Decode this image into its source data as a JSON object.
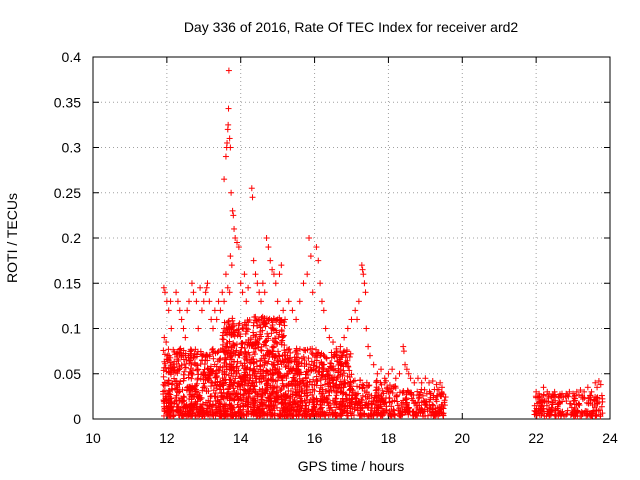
{
  "chart_data": {
    "type": "scatter",
    "title": "Day 336 of 2016, Rate Of TEC Index for receiver ard2",
    "xlabel": "GPS time / hours",
    "ylabel": "ROTI / TECUs",
    "xlim": [
      10,
      24
    ],
    "ylim": [
      0,
      0.4
    ],
    "x_ticks": [
      10,
      12,
      14,
      16,
      18,
      20,
      22,
      24
    ],
    "x_tick_labels": [
      "10",
      "12",
      "14",
      "16",
      "18",
      "20",
      "22",
      "24"
    ],
    "y_ticks": [
      0,
      0.05,
      0.1,
      0.15,
      0.2,
      0.25,
      0.3,
      0.35,
      0.4
    ],
    "y_tick_labels": [
      "0",
      "0.05",
      "0.1",
      "0.15",
      "0.2",
      "0.25",
      "0.3",
      "0.35",
      "0.4"
    ],
    "grid": true,
    "marker": "+",
    "marker_color": "#ff0000",
    "points": [
      [
        11.92,
        0.145
      ],
      [
        11.95,
        0.14
      ],
      [
        12.0,
        0.13
      ],
      [
        12.05,
        0.12
      ],
      [
        12.1,
        0.13
      ],
      [
        12.12,
        0.1
      ],
      [
        11.93,
        0.09
      ],
      [
        11.98,
        0.085
      ],
      [
        12.25,
        0.14
      ],
      [
        12.3,
        0.13
      ],
      [
        12.35,
        0.12
      ],
      [
        12.4,
        0.11
      ],
      [
        12.45,
        0.1
      ],
      [
        12.5,
        0.09
      ],
      [
        12.55,
        0.12
      ],
      [
        12.6,
        0.13
      ],
      [
        12.68,
        0.15
      ],
      [
        12.72,
        0.14
      ],
      [
        12.8,
        0.13
      ],
      [
        12.85,
        0.1
      ],
      [
        12.9,
        0.145
      ],
      [
        12.95,
        0.12
      ],
      [
        13.0,
        0.13
      ],
      [
        13.05,
        0.14
      ],
      [
        13.08,
        0.145
      ],
      [
        13.1,
        0.15
      ],
      [
        13.15,
        0.13
      ],
      [
        13.2,
        0.11
      ],
      [
        13.25,
        0.1
      ],
      [
        13.3,
        0.12
      ],
      [
        13.35,
        0.11
      ],
      [
        13.4,
        0.13
      ],
      [
        13.45,
        0.12
      ],
      [
        13.5,
        0.14
      ],
      [
        13.55,
        0.13
      ],
      [
        13.55,
        0.265
      ],
      [
        13.6,
        0.29
      ],
      [
        13.62,
        0.3
      ],
      [
        13.63,
        0.305
      ],
      [
        13.65,
        0.32
      ],
      [
        13.66,
        0.325
      ],
      [
        13.67,
        0.343
      ],
      [
        13.68,
        0.385
      ],
      [
        13.7,
        0.31
      ],
      [
        13.72,
        0.3
      ],
      [
        13.74,
        0.25
      ],
      [
        13.78,
        0.23
      ],
      [
        13.8,
        0.225
      ],
      [
        13.82,
        0.21
      ],
      [
        13.85,
        0.2
      ],
      [
        13.9,
        0.195
      ],
      [
        13.95,
        0.19
      ],
      [
        13.72,
        0.18
      ],
      [
        13.76,
        0.17
      ],
      [
        13.6,
        0.16
      ],
      [
        13.65,
        0.145
      ],
      [
        13.7,
        0.14
      ],
      [
        14.0,
        0.15
      ],
      [
        14.05,
        0.14
      ],
      [
        14.1,
        0.16
      ],
      [
        14.15,
        0.13
      ],
      [
        14.2,
        0.145
      ],
      [
        14.3,
        0.255
      ],
      [
        14.32,
        0.245
      ],
      [
        14.35,
        0.175
      ],
      [
        14.4,
        0.16
      ],
      [
        14.45,
        0.15
      ],
      [
        14.5,
        0.14
      ],
      [
        14.55,
        0.13
      ],
      [
        14.6,
        0.15
      ],
      [
        14.65,
        0.14
      ],
      [
        14.7,
        0.2
      ],
      [
        14.75,
        0.19
      ],
      [
        14.8,
        0.175
      ],
      [
        14.85,
        0.165
      ],
      [
        14.9,
        0.16
      ],
      [
        14.95,
        0.15
      ],
      [
        15.0,
        0.13
      ],
      [
        15.05,
        0.16
      ],
      [
        15.1,
        0.17
      ],
      [
        15.15,
        0.12
      ],
      [
        15.2,
        0.11
      ],
      [
        15.3,
        0.13
      ],
      [
        15.4,
        0.12
      ],
      [
        15.5,
        0.11
      ],
      [
        15.6,
        0.13
      ],
      [
        15.7,
        0.15
      ],
      [
        15.8,
        0.16
      ],
      [
        15.85,
        0.2
      ],
      [
        15.9,
        0.18
      ],
      [
        15.95,
        0.14
      ],
      [
        16.05,
        0.19
      ],
      [
        16.1,
        0.175
      ],
      [
        16.15,
        0.15
      ],
      [
        16.2,
        0.13
      ],
      [
        16.25,
        0.12
      ],
      [
        16.3,
        0.1
      ],
      [
        16.4,
        0.09
      ],
      [
        16.5,
        0.085
      ],
      [
        16.6,
        0.07
      ],
      [
        16.7,
        0.08
      ],
      [
        16.8,
        0.09
      ],
      [
        16.9,
        0.1
      ],
      [
        17.0,
        0.11
      ],
      [
        17.1,
        0.12
      ],
      [
        17.15,
        0.11
      ],
      [
        17.2,
        0.13
      ],
      [
        17.28,
        0.17
      ],
      [
        17.3,
        0.165
      ],
      [
        17.32,
        0.16
      ],
      [
        17.35,
        0.15
      ],
      [
        17.38,
        0.14
      ],
      [
        17.4,
        0.1
      ],
      [
        17.45,
        0.08
      ],
      [
        17.5,
        0.07
      ],
      [
        17.6,
        0.06
      ],
      [
        17.7,
        0.05
      ],
      [
        17.8,
        0.055
      ],
      [
        17.9,
        0.045
      ],
      [
        18.0,
        0.05
      ],
      [
        18.1,
        0.055
      ],
      [
        18.2,
        0.045
      ],
      [
        18.3,
        0.05
      ],
      [
        18.4,
        0.08
      ],
      [
        18.42,
        0.075
      ],
      [
        18.45,
        0.06
      ],
      [
        18.5,
        0.055
      ],
      [
        18.55,
        0.05
      ],
      [
        18.6,
        0.045
      ],
      [
        18.7,
        0.04
      ],
      [
        18.8,
        0.045
      ],
      [
        18.9,
        0.04
      ],
      [
        19.0,
        0.045
      ],
      [
        19.1,
        0.04
      ],
      [
        19.2,
        0.042
      ],
      [
        19.3,
        0.038
      ],
      [
        19.4,
        0.04
      ],
      [
        19.45,
        0.035
      ],
      [
        22.0,
        0.03
      ],
      [
        22.1,
        0.025
      ],
      [
        22.2,
        0.035
      ],
      [
        22.3,
        0.03
      ],
      [
        22.4,
        0.025
      ],
      [
        22.5,
        0.03
      ],
      [
        22.6,
        0.025
      ],
      [
        22.7,
        0.028
      ],
      [
        22.8,
        0.025
      ],
      [
        22.9,
        0.03
      ],
      [
        23.0,
        0.028
      ],
      [
        23.1,
        0.03
      ],
      [
        23.2,
        0.032
      ],
      [
        23.3,
        0.03
      ],
      [
        23.4,
        0.035
      ],
      [
        23.5,
        0.03
      ],
      [
        23.6,
        0.04
      ],
      [
        23.65,
        0.035
      ],
      [
        23.7,
        0.042
      ],
      [
        23.75,
        0.038
      ]
    ],
    "dense_bands": [
      {
        "x_start": 11.9,
        "x_end": 13.5,
        "y_max": 0.075
      },
      {
        "x_start": 13.5,
        "x_end": 15.2,
        "y_max": 0.11
      },
      {
        "x_start": 15.2,
        "x_end": 17.0,
        "y_max": 0.075
      },
      {
        "x_start": 17.0,
        "x_end": 18.2,
        "y_max": 0.04
      },
      {
        "x_start": 18.2,
        "x_end": 19.55,
        "y_max": 0.03
      },
      {
        "x_start": 21.95,
        "x_end": 23.8,
        "y_max": 0.025
      }
    ]
  }
}
